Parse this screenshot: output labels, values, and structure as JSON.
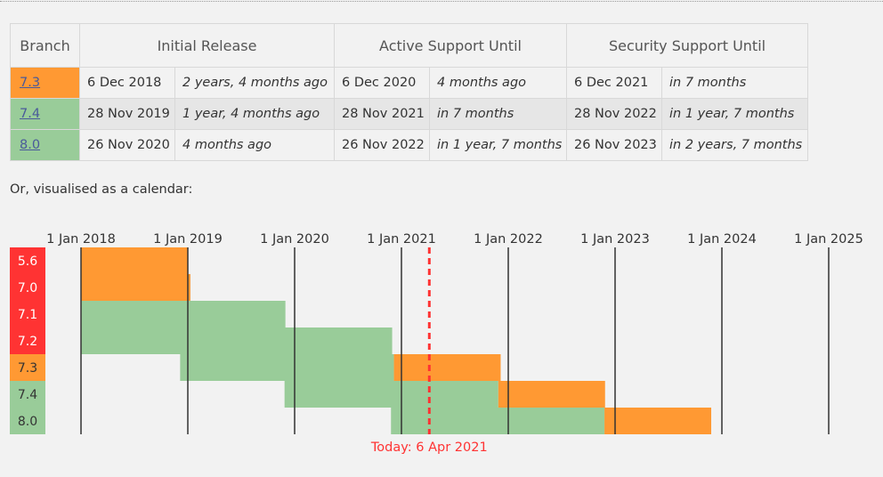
{
  "table": {
    "headers": {
      "branch": "Branch",
      "initial_release": "Initial Release",
      "active_support": "Active Support Until",
      "security_support": "Security Support Until"
    },
    "rows": [
      {
        "branch": "7.3",
        "status": "security",
        "initial_release": "6 Dec 2018",
        "initial_release_rel": "2 years, 4 months ago",
        "active_support": "6 Dec 2020",
        "active_support_rel": "4 months ago",
        "security_support": "6 Dec 2021",
        "security_support_rel": "in 7 months"
      },
      {
        "branch": "7.4",
        "status": "active",
        "initial_release": "28 Nov 2019",
        "initial_release_rel": "1 year, 4 months ago",
        "active_support": "28 Nov 2021",
        "active_support_rel": "in 7 months",
        "security_support": "28 Nov 2022",
        "security_support_rel": "in 1 year, 7 months"
      },
      {
        "branch": "8.0",
        "status": "active",
        "initial_release": "26 Nov 2020",
        "initial_release_rel": "4 months ago",
        "active_support": "26 Nov 2022",
        "active_support_rel": "in 1 year, 7 months",
        "security_support": "26 Nov 2023",
        "security_support_rel": "in 2 years, 7 months"
      }
    ]
  },
  "caption": "Or, visualised as a calendar:",
  "calendar": {
    "years": [
      "1 Jan 2018",
      "1 Jan 2019",
      "1 Jan 2020",
      "1 Jan 2021",
      "1 Jan 2022",
      "1 Jan 2023",
      "1 Jan 2024",
      "1 Jan 2025"
    ],
    "branches": [
      {
        "label": "5.6",
        "status": "eol",
        "release": "",
        "active_until": "",
        "security_until": "2018-12-31"
      },
      {
        "label": "7.0",
        "status": "eol",
        "release": "",
        "active_until": "",
        "security_until": "2019-01-10"
      },
      {
        "label": "7.1",
        "status": "eol",
        "release": "",
        "active_until": "2019-12-01",
        "security_until": "2019-12-01"
      },
      {
        "label": "7.2",
        "status": "eol",
        "release": "",
        "active_until": "2020-11-30",
        "security_until": "2020-11-30"
      },
      {
        "label": "7.3",
        "status": "security",
        "release": "2018-12-06",
        "active_until": "2020-12-06",
        "security_until": "2021-12-06"
      },
      {
        "label": "7.4",
        "status": "active",
        "release": "2019-11-28",
        "active_until": "2021-11-28",
        "security_until": "2022-11-28"
      },
      {
        "label": "8.0",
        "status": "active",
        "release": "2020-11-26",
        "active_until": "2022-11-26",
        "security_until": "2023-11-26"
      }
    ],
    "today_label": "Today: 6 Apr 2021",
    "today_date": "2021-04-06",
    "colors": {
      "active": "#99cc99",
      "security": "#ff9933",
      "eol": "#ff3333",
      "today": "#ff3333",
      "grid": "#333333"
    }
  }
}
